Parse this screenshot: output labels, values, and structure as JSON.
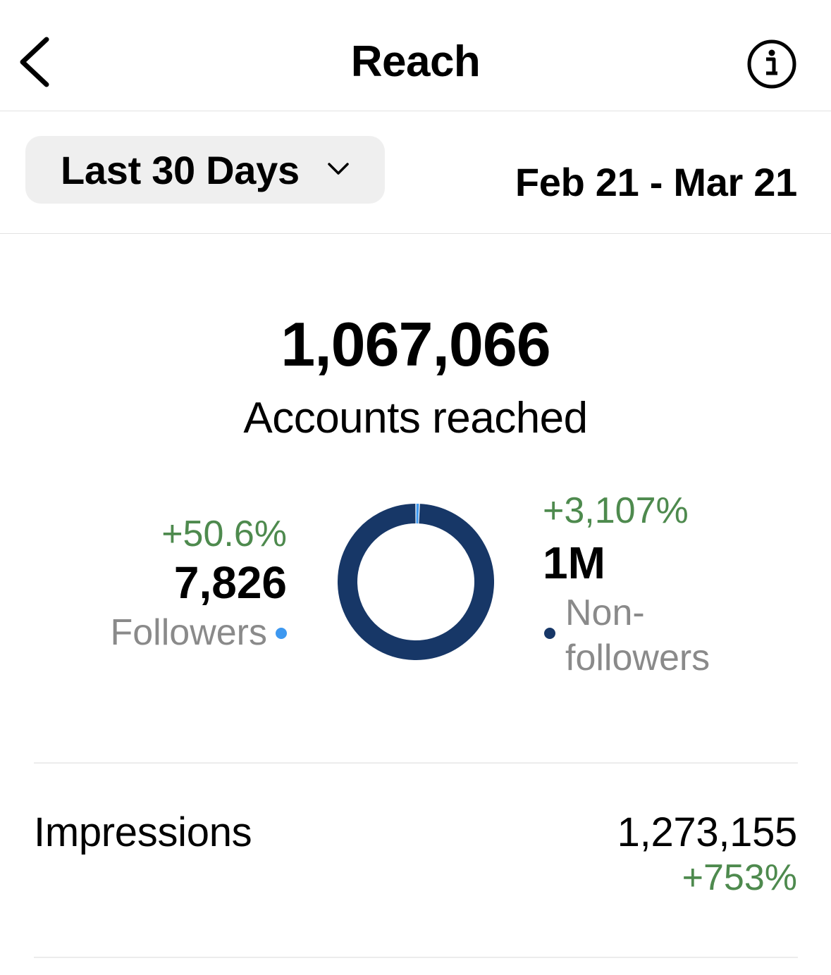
{
  "header": {
    "title": "Reach",
    "back_icon": "chevron-left-icon",
    "info_icon": "info-icon"
  },
  "filter": {
    "range_label": "Last 30 Days",
    "range_icon": "chevron-down-icon",
    "date_range": "Feb 21 - Mar 21"
  },
  "summary": {
    "total": "1,067,066",
    "total_label": "Accounts reached"
  },
  "breakdown": {
    "followers": {
      "change": "+50.6%",
      "value": "7,826",
      "label": "Followers",
      "color": "#3d98f0"
    },
    "non_followers": {
      "change": "+3,107%",
      "value": "1M",
      "label": "Non-followers",
      "label_line1": "Non-",
      "label_line2": "followers",
      "color": "#173767"
    }
  },
  "chart_data": {
    "type": "pie",
    "donut": true,
    "categories": [
      "Followers",
      "Non-followers"
    ],
    "values": [
      7826,
      1059240
    ],
    "colors": [
      "#3d98f0",
      "#173767"
    ]
  },
  "impressions": {
    "label": "Impressions",
    "value": "1,273,155",
    "change": "+753%"
  },
  "colors": {
    "positive": "#4e8a4e",
    "secondary_text": "#8a8a8a"
  }
}
